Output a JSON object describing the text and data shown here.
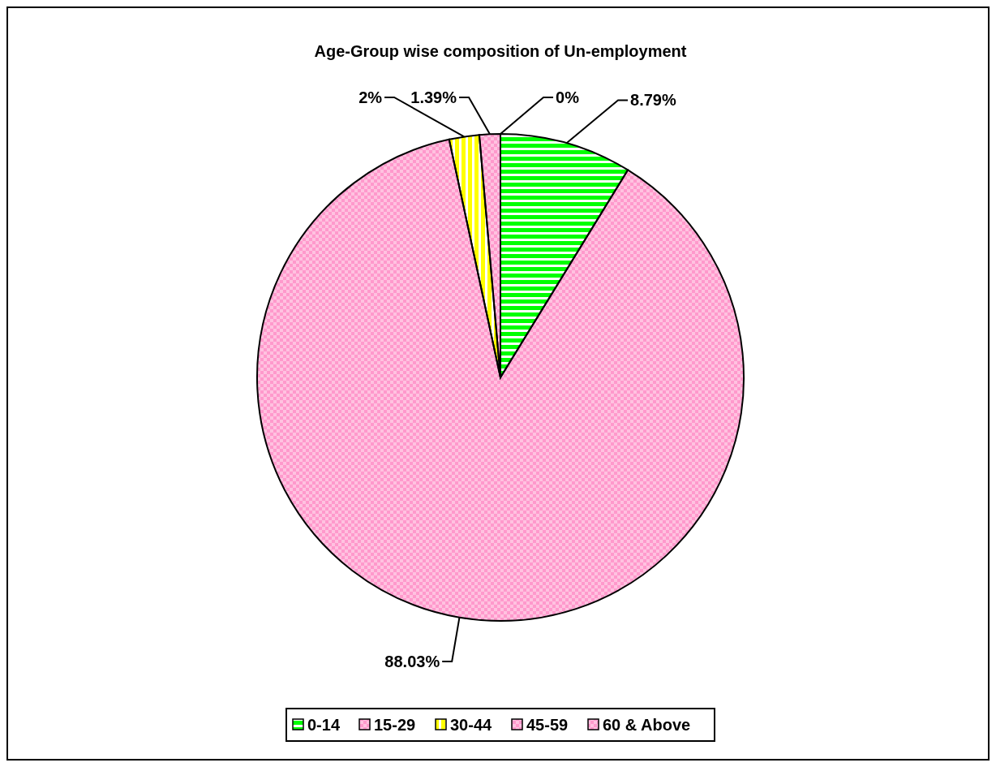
{
  "chart_data": {
    "type": "pie",
    "title": "Age-Group wise composition of Un-employment",
    "categories": [
      "0-14",
      "15-29",
      "30-44",
      "45-59",
      "60 & Above"
    ],
    "values": [
      8.79,
      88.03,
      2,
      1.39,
      0
    ],
    "colors": [
      "#00ff00",
      "#ff99cc",
      "#ffff00",
      "#ff99cc",
      "#ff99cc"
    ],
    "value_labels": [
      "8.79%",
      "88.03%",
      "2%",
      "1.39%",
      "0%"
    ],
    "legend": "bottom"
  }
}
